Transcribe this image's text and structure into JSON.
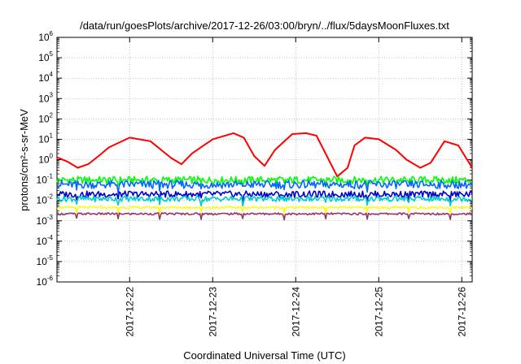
{
  "chart_data": {
    "type": "line",
    "title": "/data/run/goesPlots/archive/2017-12-26/03:00/bryn/../flux/5daysMoonFluxes.txt",
    "xlabel": "Coordinated Universal Time (UTC)",
    "ylabel": "protons/cm²-s-sr-MeV",
    "yscale": "log",
    "ylim": [
      1e-06,
      1000000.0
    ],
    "xlim": [
      "2017-12-21T03:00",
      "2017-12-26T03:00"
    ],
    "grid": true,
    "legend": "none",
    "x_ticks": [
      "2017-12-22",
      "2017-12-23",
      "2017-12-24",
      "2017-12-25",
      "2017-12-26"
    ],
    "y_ticks": [
      {
        "base": "10",
        "exp": "-6"
      },
      {
        "base": "10",
        "exp": "-5"
      },
      {
        "base": "10",
        "exp": "-4"
      },
      {
        "base": "10",
        "exp": "-3"
      },
      {
        "base": "10",
        "exp": "-2"
      },
      {
        "base": "10",
        "exp": "-1"
      },
      {
        "base": "10",
        "exp": "0"
      },
      {
        "base": "10",
        "exp": "1"
      },
      {
        "base": "10",
        "exp": "2"
      },
      {
        "base": "10",
        "exp": "3"
      },
      {
        "base": "10",
        "exp": "4"
      },
      {
        "base": "10",
        "exp": "5"
      },
      {
        "base": "10",
        "exp": "6"
      }
    ],
    "series": [
      {
        "color": "#ff0000",
        "x": [
          "2017-12-21T03:00",
          "2017-12-21T06:00",
          "2017-12-21T09:00",
          "2017-12-21T12:00",
          "2017-12-21T15:00",
          "2017-12-21T18:00",
          "2017-12-22T00:00",
          "2017-12-22T06:00",
          "2017-12-22T12:00",
          "2017-12-22T15:00",
          "2017-12-22T18:00",
          "2017-12-23T00:00",
          "2017-12-23T06:00",
          "2017-12-23T09:00",
          "2017-12-23T12:00",
          "2017-12-23T15:00",
          "2017-12-23T18:00",
          "2017-12-23T23:00",
          "2017-12-24T03:00",
          "2017-12-24T06:00",
          "2017-12-24T09:00",
          "2017-12-24T12:00",
          "2017-12-24T15:00",
          "2017-12-24T17:00",
          "2017-12-24T20:00",
          "2017-12-25T00:00",
          "2017-12-25T05:00",
          "2017-12-25T08:00",
          "2017-12-25T12:00",
          "2017-12-25T15:00",
          "2017-12-25T19:00",
          "2017-12-25T23:00",
          "2017-12-26T03:00"
        ],
        "values": [
          1.3,
          0.8,
          0.4,
          0.6,
          1.5,
          4,
          12,
          8,
          1.2,
          0.6,
          2,
          10,
          20,
          12,
          1.5,
          0.5,
          3,
          18,
          20,
          15,
          1.5,
          0.15,
          0.4,
          5,
          12,
          10,
          3,
          1,
          0.4,
          0.7,
          8,
          5,
          0.4
        ]
      },
      {
        "color": "#00ff00",
        "x": [
          "2017-12-21T03:00",
          "2017-12-26T03:00"
        ],
        "values": [
          0.1,
          0.1
        ]
      },
      {
        "color": "#0066ff",
        "x": [
          "2017-12-21T03:00",
          "2017-12-26T03:00"
        ],
        "values": [
          0.06,
          0.06
        ]
      },
      {
        "color": "#0000cc",
        "x": [
          "2017-12-21T03:00",
          "2017-12-26T03:00"
        ],
        "values": [
          0.02,
          0.02
        ]
      },
      {
        "color": "#00cccc",
        "x": [
          "2017-12-21T03:00",
          "2017-12-26T03:00"
        ],
        "values": [
          0.012,
          0.012
        ]
      },
      {
        "color": "#ffff00",
        "x": [
          "2017-12-21T03:00",
          "2017-12-26T03:00"
        ],
        "values": [
          0.0045,
          0.0045
        ]
      },
      {
        "color": "#993366",
        "x": [
          "2017-12-21T03:00",
          "2017-12-26T03:00"
        ],
        "values": [
          0.0022,
          0.0022
        ]
      }
    ]
  }
}
